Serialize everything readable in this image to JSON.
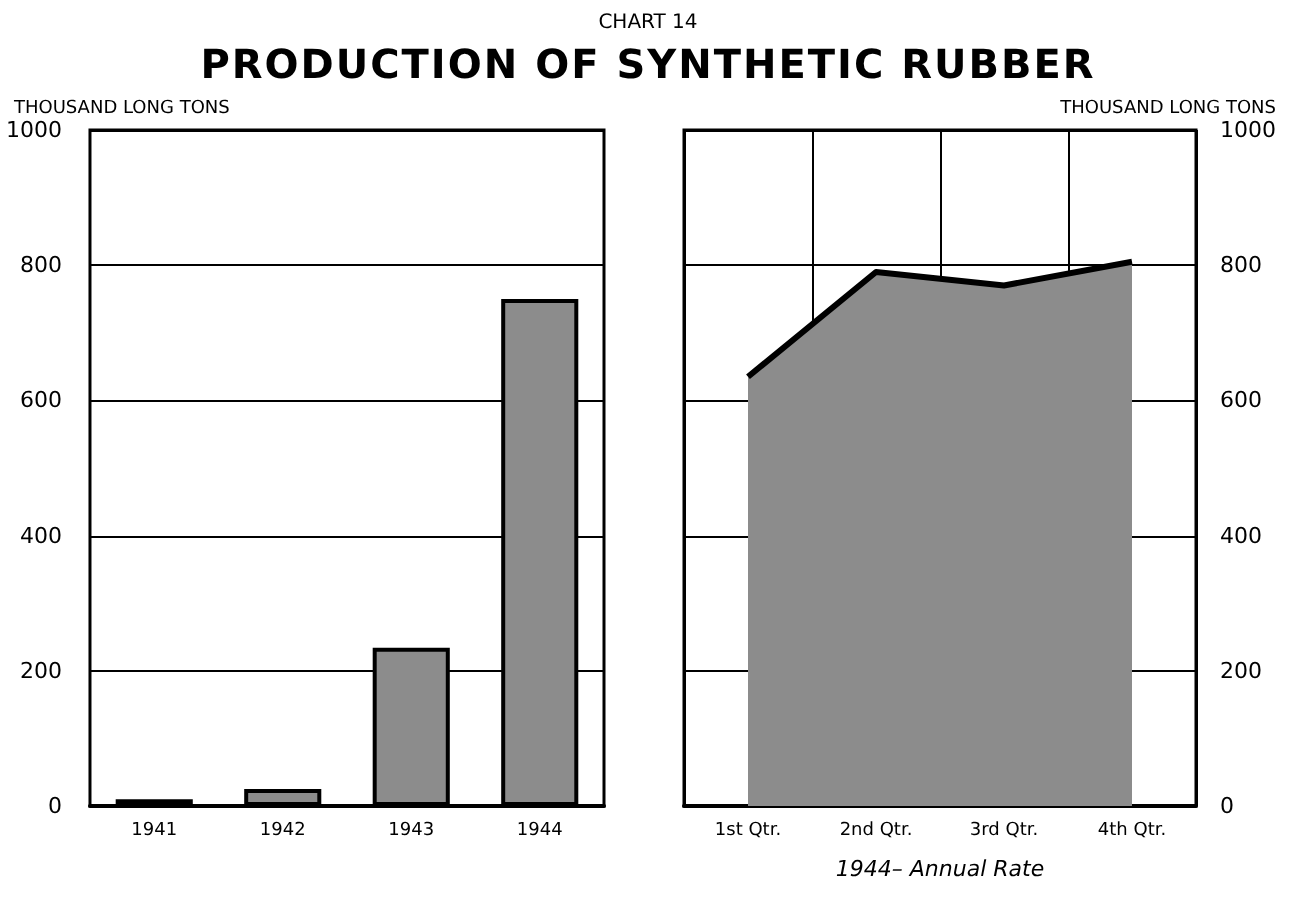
{
  "chart_data": [
    {
      "type": "bar",
      "subtitle": "CHART 14",
      "title": "PRODUCTION OF SYNTHETIC RUBBER",
      "ylabel": "THOUSAND LONG TONS",
      "categories": [
        "1941",
        "1942",
        "1943",
        "1944"
      ],
      "series": [
        {
          "color": "#8c8c8c",
          "values": [
            10,
            25,
            234,
            750
          ]
        }
      ],
      "ylim": [
        0,
        1000
      ],
      "yticks": [
        0,
        200,
        400,
        600,
        800,
        1000
      ],
      "grid": "y"
    },
    {
      "type": "area",
      "y2label": "THOUSAND LONG TONS",
      "xlabel": "1944– Annual Rate",
      "categories": [
        "1st Qtr.",
        "2nd Qtr.",
        "3rd Qtr.",
        "4th Qtr."
      ],
      "series": [
        {
          "color": "#8c8c8c",
          "axis": "y2",
          "values": [
            635,
            790,
            770,
            805
          ]
        }
      ],
      "y2lim": [
        0,
        1000
      ],
      "y2ticks": [
        0,
        200,
        400,
        600,
        800,
        1000
      ],
      "grid": true
    }
  ]
}
